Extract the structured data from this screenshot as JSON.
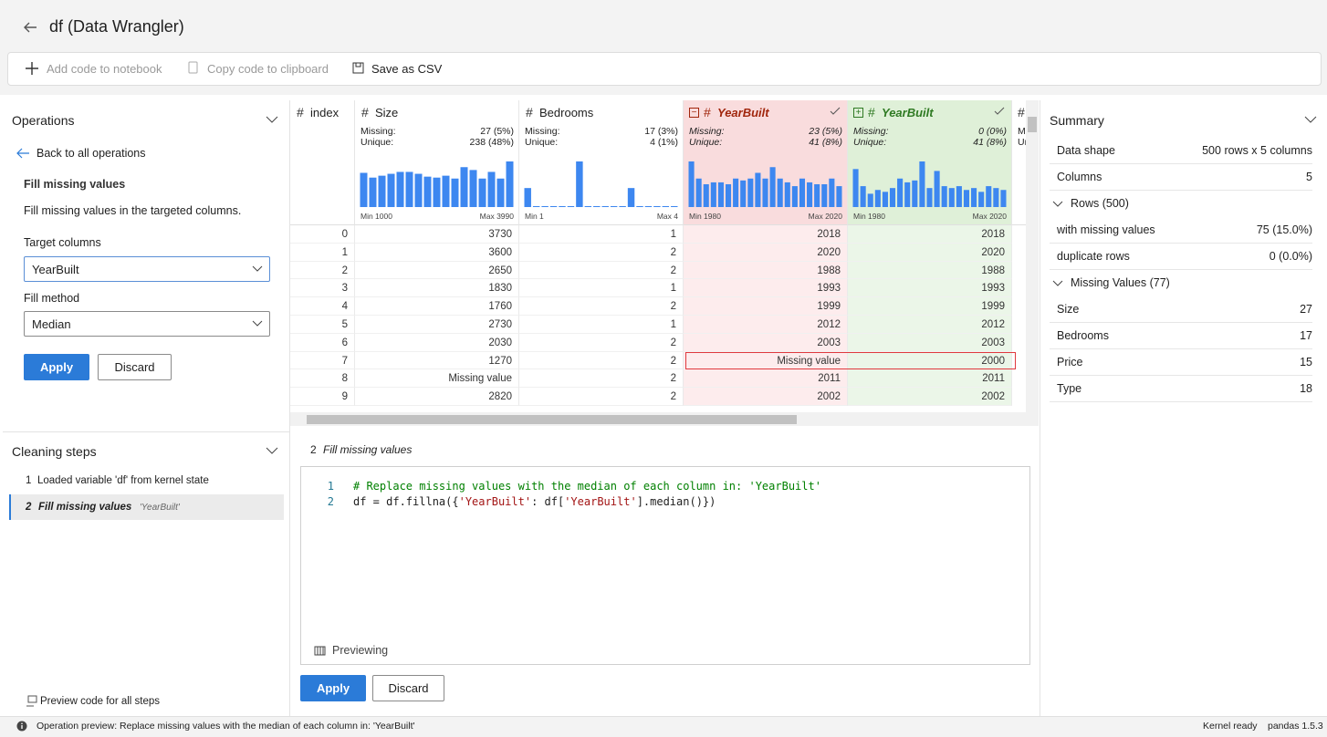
{
  "header": {
    "title": "df (Data Wrangler)"
  },
  "toolbar": {
    "add_code": "Add code to notebook",
    "copy_code": "Copy code to clipboard",
    "save_csv": "Save as CSV"
  },
  "operations": {
    "title": "Operations",
    "back": "Back to all operations",
    "operation": "Fill missing values",
    "description": "Fill missing values in the targeted columns.",
    "target_label": "Target columns",
    "target_value": "YearBuilt",
    "method_label": "Fill method",
    "method_value": "Median",
    "apply": "Apply",
    "discard": "Discard"
  },
  "cleaning_steps": {
    "title": "Cleaning steps",
    "steps": [
      {
        "number": 1,
        "label": "Loaded variable 'df' from kernel state"
      },
      {
        "number": 2,
        "label": "Fill missing values",
        "detail": "'YearBuilt'"
      }
    ],
    "preview_all": "Preview code for all steps"
  },
  "grid": {
    "labels": {
      "type_icon": "#",
      "missing": "Missing:",
      "unique": "Unique:"
    },
    "columns": [
      {
        "name": "index"
      },
      {
        "name": "Size",
        "missing": "27 (5%)",
        "unique": "238 (48%)",
        "min": "Min 1000",
        "max": "Max 3990",
        "histogram": [
          36,
          31,
          33,
          35,
          37,
          37,
          35,
          32,
          31,
          33,
          30,
          42,
          39,
          30,
          37,
          30,
          48
        ],
        "bar_color": "#3d87f0"
      },
      {
        "name": "Bedrooms",
        "missing": "17 (3%)",
        "unique": "4 (1%)",
        "min": "Min 1",
        "max": "Max 4",
        "histogram": [
          20,
          1,
          1,
          1,
          1,
          1,
          48,
          1,
          1,
          1,
          1,
          1,
          20,
          1,
          1,
          1,
          1,
          1
        ],
        "bar_color": "#3d87f0"
      },
      {
        "name": "YearBuilt",
        "missing": "23 (5%)",
        "unique": "41 (8%)",
        "min": "Min 1980",
        "max": "Max 2020",
        "histogram": [
          48,
          30,
          24,
          26,
          26,
          24,
          30,
          28,
          30,
          36,
          30,
          42,
          30,
          26,
          22,
          30,
          26,
          24,
          24,
          30,
          22
        ],
        "bar_color": "#3d87f0",
        "header_color": "#f9dcdd",
        "cell_color": "#fdeced",
        "name_color": "#a1260d"
      },
      {
        "name": "YearBuilt",
        "missing": "0 (0%)",
        "unique": "41 (8%)",
        "min": "Min 1980",
        "max": "Max 2020",
        "histogram": [
          40,
          22,
          14,
          18,
          16,
          20,
          30,
          26,
          28,
          48,
          20,
          38,
          22,
          20,
          22,
          18,
          20,
          16,
          22,
          20,
          18
        ],
        "bar_color": "#3d87f0",
        "header_color": "#dff0d8",
        "cell_color": "#ebf6e8",
        "name_color": "#2f7a23"
      }
    ],
    "rows": [
      [
        0,
        3730,
        1,
        2018,
        2018
      ],
      [
        1,
        3600,
        2,
        2020,
        2020
      ],
      [
        2,
        2650,
        2,
        1988,
        1988
      ],
      [
        3,
        1830,
        1,
        1993,
        1993
      ],
      [
        4,
        1760,
        2,
        1999,
        1999
      ],
      [
        5,
        2730,
        1,
        2012,
        2012
      ],
      [
        6,
        2030,
        2,
        2003,
        2003
      ],
      [
        7,
        1270,
        2,
        "Missing value",
        2000
      ],
      [
        8,
        "Missing value",
        2,
        2011,
        2011
      ],
      [
        9,
        2820,
        2,
        2002,
        2002
      ]
    ]
  },
  "code": {
    "step_number": 2,
    "step_title": "Fill missing values",
    "lines": [
      {
        "number": 1,
        "tokens": [
          {
            "text": "# Replace missing values with the median of each column in: 'YearBuilt'",
            "color": "#008000"
          }
        ]
      },
      {
        "number": 2,
        "tokens": [
          {
            "text": "df = df.fillna({",
            "color": "#1f1f1f"
          },
          {
            "text": "'YearBuilt'",
            "color": "#a31515"
          },
          {
            "text": ": df[",
            "color": "#1f1f1f"
          },
          {
            "text": "'YearBuilt'",
            "color": "#a31515"
          },
          {
            "text": "].median()})",
            "color": "#1f1f1f"
          }
        ]
      }
    ],
    "previewing": "Previewing",
    "apply": "Apply",
    "discard": "Discard"
  },
  "summary": {
    "title": "Summary",
    "rows": [
      {
        "label": "Data shape",
        "value": "500 rows x 5 columns"
      },
      {
        "label": "Columns",
        "value": 5
      }
    ],
    "sections": [
      {
        "title": "Rows (500)",
        "rows": [
          {
            "label": "with missing values",
            "value": "75 (15.0%)"
          },
          {
            "label": "duplicate rows",
            "value": "0 (0.0%)"
          }
        ]
      },
      {
        "title": "Missing Values (77)",
        "rows": [
          {
            "label": "Size",
            "value": 27
          },
          {
            "label": "Bedrooms",
            "value": 17
          },
          {
            "label": "Price",
            "value": 15
          },
          {
            "label": "Type",
            "value": 18
          }
        ]
      }
    ]
  },
  "status": {
    "message": "Operation preview: Replace missing values with the median of each column in: 'YearBuilt'",
    "kernel": "Kernel ready",
    "pandas": "pandas 1.5.3"
  }
}
